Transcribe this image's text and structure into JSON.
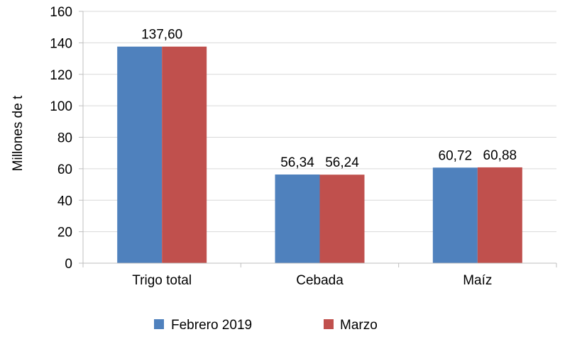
{
  "chart_data": {
    "type": "bar",
    "title": "",
    "xlabel": "",
    "ylabel": "Millones de t",
    "ylim": [
      0,
      160
    ],
    "yticks": [
      0,
      20,
      40,
      60,
      80,
      100,
      120,
      140,
      160
    ],
    "grid": true,
    "legend_position": "bottom",
    "categories": [
      "Trigo total",
      "Cebada",
      "Maíz"
    ],
    "series": [
      {
        "name": "Febrero 2019",
        "color": "#4f81bd",
        "values": [
          137.6,
          56.34,
          60.72
        ],
        "labels": [
          "",
          "56,34",
          "60,72"
        ]
      },
      {
        "name": "Marzo",
        "color": "#c0504d",
        "values": [
          137.6,
          56.24,
          60.88
        ],
        "labels": [
          "",
          "56,24",
          "60,88"
        ]
      }
    ],
    "group_labels": [
      "137,60",
      "",
      ""
    ]
  }
}
